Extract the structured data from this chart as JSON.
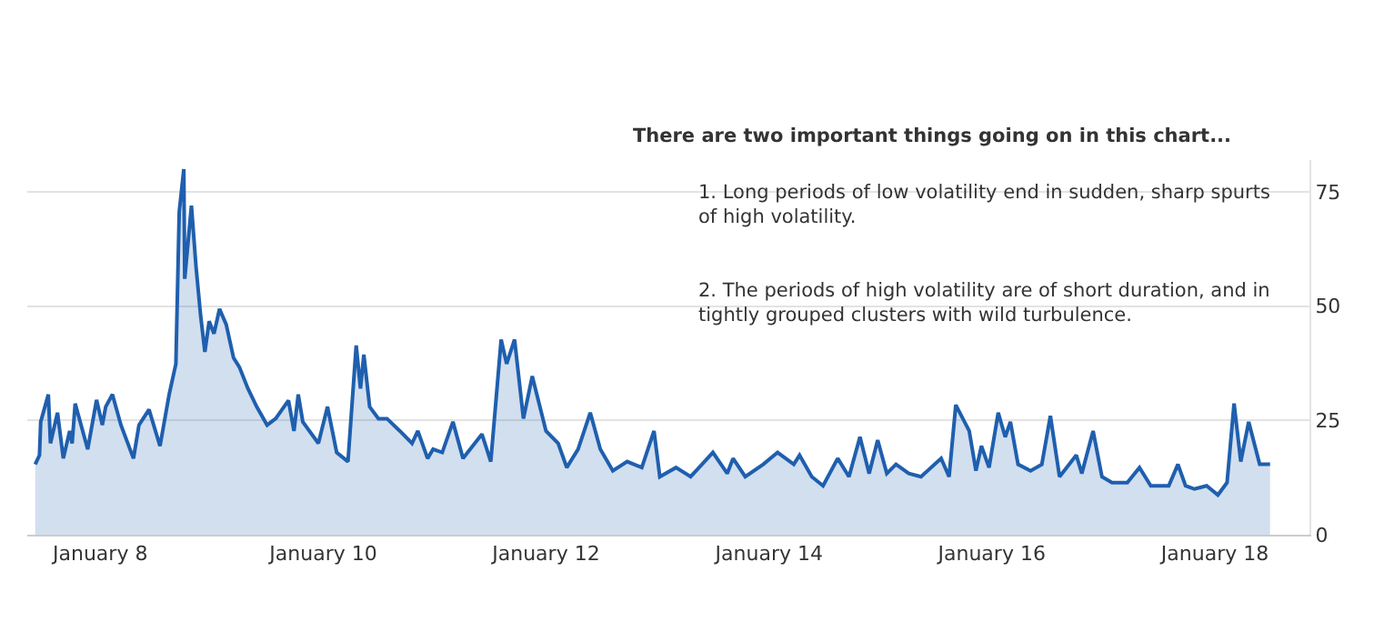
{
  "chart_data": {
    "type": "area",
    "annotations": [
      "There are two important things going on in this chart...",
      "1. Long periods of low volatility end in sudden, sharp spurts\nof high volatility.",
      "2. The periods of high volatility are of short duration, and in\ntightly grouped clusters with wild turbulence."
    ],
    "series": [
      {
        "color": "#1f5fae",
        "x": [
          "2007-06-02",
          "2007-06-16",
          "2007-06-20",
          "2007-07-15",
          "2007-07-22",
          "2007-08-14",
          "2007-09-02",
          "2007-09-23",
          "2007-10-01",
          "2007-10-11",
          "2007-11-21",
          "2007-12-20",
          "2008-01-08",
          "2008-01-19",
          "2008-02-10",
          "2008-03-09",
          "2008-04-19",
          "2008-05-07",
          "2008-06-09",
          "2008-07-15",
          "2008-08-14",
          "2008-09-05",
          "2008-09-16",
          "2008-10-01",
          "2008-10-04",
          "2008-10-26",
          "2008-11-10",
          "2008-11-25",
          "2008-12-09",
          "2008-12-23",
          "2009-01-08",
          "2009-01-26",
          "2009-02-17",
          "2009-03-13",
          "2009-04-01",
          "2009-04-29",
          "2009-05-28",
          "2009-07-01",
          "2009-07-29",
          "2009-09-09",
          "2009-09-27",
          "2009-10-11",
          "2009-10-26",
          "2009-12-16",
          "2010-01-15",
          "2010-02-14",
          "2010-03-23",
          "2010-04-19",
          "2010-05-03",
          "2010-05-14",
          "2010-06-02",
          "2010-07-01",
          "2010-07-29",
          "2010-09-09",
          "2010-10-19",
          "2010-11-07",
          "2010-12-09",
          "2010-12-27",
          "2011-01-26",
          "2011-03-02",
          "2011-04-04",
          "2011-06-05",
          "2011-07-04",
          "2011-08-07",
          "2011-08-25",
          "2011-09-20",
          "2011-10-19",
          "2011-11-17",
          "2012-01-01",
          "2012-02-10",
          "2012-03-09",
          "2012-04-15",
          "2012-05-25",
          "2012-06-27",
          "2012-08-07",
          "2012-09-23",
          "2012-11-10",
          "2012-12-20",
          "2013-01-08",
          "2013-03-02",
          "2013-04-19",
          "2013-07-01",
          "2013-08-17",
          "2013-09-05",
          "2013-10-15",
          "2013-12-13",
          "2014-01-29",
          "2014-03-23",
          "2014-04-11",
          "2014-05-21",
          "2014-06-27",
          "2014-08-14",
          "2014-09-20",
          "2014-10-26",
          "2014-11-25",
          "2014-12-23",
          "2015-01-22",
          "2015-02-21",
          "2015-04-04",
          "2015-05-14",
          "2015-07-19",
          "2015-08-14",
          "2015-09-05",
          "2015-10-19",
          "2015-11-10",
          "2015-11-28",
          "2015-12-23",
          "2016-01-22",
          "2016-02-14",
          "2016-03-02",
          "2016-03-27",
          "2016-05-07",
          "2016-06-13",
          "2016-07-11",
          "2016-08-10",
          "2016-10-04",
          "2016-10-22",
          "2016-11-28",
          "2016-12-27",
          "2017-01-29",
          "2017-03-20",
          "2017-04-29",
          "2017-06-05",
          "2017-08-03",
          "2017-09-02",
          "2017-09-27",
          "2017-10-26",
          "2017-12-05",
          "2018-01-11",
          "2018-02-10",
          "2018-03-05",
          "2018-03-27",
          "2018-04-22",
          "2018-05-28",
          "2018-07-01"
        ],
        "values": [
          15.4,
          17.4,
          24.7,
          30.7,
          20,
          26.7,
          16.7,
          22.7,
          20,
          28.7,
          18.7,
          29.5,
          24,
          28,
          30.7,
          24,
          16.7,
          24,
          27.4,
          19.4,
          30.7,
          37.4,
          70.7,
          80,
          56,
          72,
          58.7,
          48,
          40,
          46.7,
          44,
          49.4,
          46,
          38.7,
          36.7,
          32,
          28,
          24,
          25.4,
          29.4,
          22.7,
          30.7,
          24.7,
          20,
          28,
          18,
          16,
          41.4,
          32,
          39.4,
          28,
          25.4,
          25.4,
          22.7,
          20,
          22.7,
          16.7,
          18.7,
          18,
          24.7,
          16.7,
          22,
          16,
          42.7,
          37.4,
          42.7,
          25.4,
          34.7,
          22.7,
          20,
          14.7,
          18.7,
          26.7,
          18.7,
          14,
          16,
          14.7,
          22.7,
          12.7,
          14.7,
          12.7,
          18,
          13.4,
          16.7,
          12.7,
          15.4,
          18,
          15.4,
          17.4,
          12.7,
          10.7,
          16.7,
          12.7,
          21.4,
          13.4,
          20.7,
          13.4,
          15.4,
          13.4,
          12.7,
          16.7,
          12.7,
          28.4,
          22.7,
          14,
          19.4,
          14.7,
          26.7,
          21.4,
          24.7,
          15.4,
          14,
          15.4,
          26,
          12.7,
          17.4,
          13.4,
          22.7,
          12.7,
          11.4,
          11.4,
          14.7,
          10.7,
          10.7,
          15.4,
          10.7,
          10,
          10.7,
          8.7,
          11.4,
          28.7,
          16,
          24.7,
          15.4,
          15.4
        ]
      }
    ],
    "xlim": [
      "2007-05-07",
      "2018-11-07"
    ],
    "xticks": [
      {
        "value": "2008-01-01",
        "label": "January 8"
      },
      {
        "value": "2010-01-01",
        "label": "January 10"
      },
      {
        "value": "2012-01-01",
        "label": "January 12"
      },
      {
        "value": "2014-01-01",
        "label": "January 14"
      },
      {
        "value": "2016-01-01",
        "label": "January 16"
      },
      {
        "value": "2018-01-01",
        "label": "January 18"
      }
    ],
    "ylim": [
      0,
      82
    ],
    "yticks": [
      0,
      25,
      50,
      75
    ],
    "grid": "y"
  }
}
